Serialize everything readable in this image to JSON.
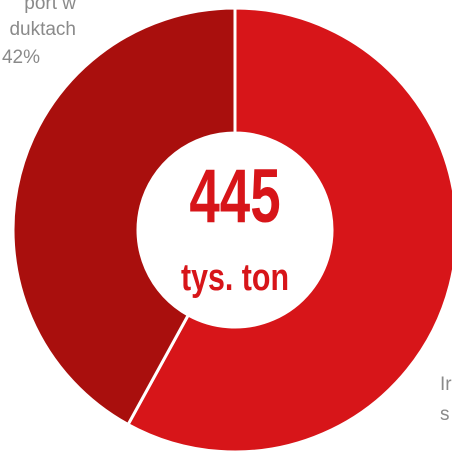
{
  "chart_data": {
    "type": "donut",
    "categories": [
      [
        "Ir",
        "s"
      ],
      [
        "port w",
        "duktach"
      ]
    ],
    "values": [
      58,
      42
    ],
    "value_labels": [
      null,
      "42%"
    ],
    "colors": [
      "#d71519",
      "#a90f0d"
    ],
    "center_value": "445",
    "center_unit": "tys. ton"
  }
}
